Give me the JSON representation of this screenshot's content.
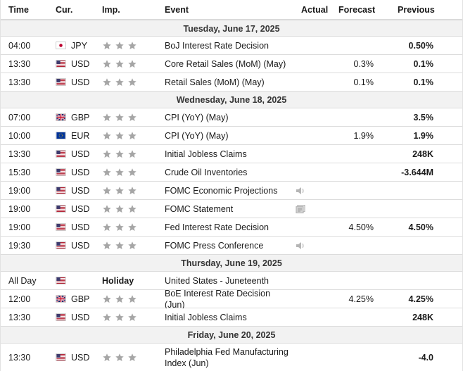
{
  "header": {
    "time": "Time",
    "currency": "Cur.",
    "importance": "Imp.",
    "event": "Event",
    "actual": "Actual",
    "forecast": "Forecast",
    "previous": "Previous"
  },
  "colors": {
    "date_row_bg": "#f2f2f2",
    "border": "#dcdcdc",
    "star": "#a6a6a6"
  },
  "days": [
    {
      "date": "Tuesday, June 17, 2025",
      "events": [
        {
          "time": "04:00",
          "flag": "jp-flag",
          "currency": "JPY",
          "event": "BoJ Interest Rate Decision",
          "icon": "",
          "actual": "",
          "forecast": "",
          "previous": "0.50%"
        },
        {
          "time": "13:30",
          "flag": "us-flag",
          "currency": "USD",
          "event": "Core Retail Sales (MoM) (May)",
          "icon": "",
          "actual": "",
          "forecast": "0.3%",
          "previous": "0.1%"
        },
        {
          "time": "13:30",
          "flag": "us-flag",
          "currency": "USD",
          "event": "Retail Sales (MoM) (May)",
          "icon": "",
          "actual": "",
          "forecast": "0.1%",
          "previous": "0.1%"
        }
      ]
    },
    {
      "date": "Wednesday, June 18, 2025",
      "events": [
        {
          "time": "07:00",
          "flag": "gb-flag",
          "currency": "GBP",
          "event": "CPI (YoY) (May)",
          "icon": "",
          "actual": "",
          "forecast": "",
          "previous": "3.5%"
        },
        {
          "time": "10:00",
          "flag": "eu-flag",
          "currency": "EUR",
          "event": "CPI (YoY) (May)",
          "icon": "",
          "actual": "",
          "forecast": "1.9%",
          "previous": "1.9%"
        },
        {
          "time": "13:30",
          "flag": "us-flag",
          "currency": "USD",
          "event": "Initial Jobless Claims",
          "icon": "",
          "actual": "",
          "forecast": "",
          "previous": "248K"
        },
        {
          "time": "15:30",
          "flag": "us-flag",
          "currency": "USD",
          "event": "Crude Oil Inventories",
          "icon": "",
          "actual": "",
          "forecast": "",
          "previous": "-3.644M"
        },
        {
          "time": "19:00",
          "flag": "us-flag",
          "currency": "USD",
          "event": "FOMC Economic Projections",
          "icon": "speaker-icon",
          "actual": "",
          "forecast": "",
          "previous": ""
        },
        {
          "time": "19:00",
          "flag": "us-flag",
          "currency": "USD",
          "event": "FOMC Statement",
          "icon": "document-icon",
          "actual": "",
          "forecast": "",
          "previous": ""
        },
        {
          "time": "19:00",
          "flag": "us-flag",
          "currency": "USD",
          "event": "Fed Interest Rate Decision",
          "icon": "",
          "actual": "",
          "forecast": "4.50%",
          "previous": "4.50%"
        },
        {
          "time": "19:30",
          "flag": "us-flag",
          "currency": "USD",
          "event": "FOMC Press Conference",
          "icon": "speaker-icon",
          "actual": "",
          "forecast": "",
          "previous": ""
        }
      ]
    },
    {
      "date": "Thursday, June 19, 2025",
      "events": [
        {
          "time": "All Day",
          "flag": "us-flag",
          "currency": "",
          "holiday": "Holiday",
          "event": "United States - Juneteenth",
          "icon": "",
          "actual": "",
          "forecast": "",
          "previous": ""
        },
        {
          "time": "12:00",
          "flag": "gb-flag",
          "currency": "GBP",
          "event": "BoE Interest Rate Decision (Jun)",
          "icon": "",
          "actual": "",
          "forecast": "4.25%",
          "previous": "4.25%"
        },
        {
          "time": "13:30",
          "flag": "us-flag",
          "currency": "USD",
          "event": "Initial Jobless Claims",
          "icon": "",
          "actual": "",
          "forecast": "",
          "previous": "248K"
        }
      ]
    },
    {
      "date": "Friday, June 20, 2025",
      "events": [
        {
          "time": "13:30",
          "flag": "us-flag",
          "currency": "USD",
          "event": "Philadelphia Fed Manufacturing Index (Jun)",
          "icon": "",
          "actual": "",
          "forecast": "",
          "previous": "-4.0"
        }
      ]
    }
  ]
}
